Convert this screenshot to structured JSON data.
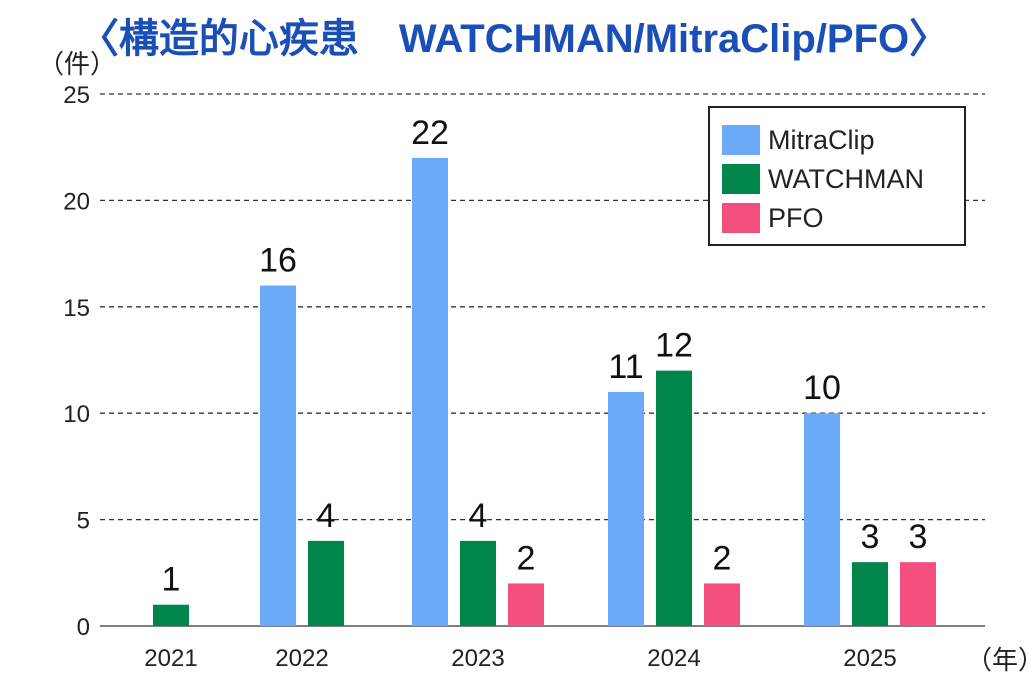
{
  "chart_data": {
    "type": "bar",
    "title": "〈構造的心疾患　WATCHMAN/MitraClip/PFO〉",
    "ylabel": "（件）",
    "xlabel": "（年）",
    "ylim": [
      0,
      25
    ],
    "yticks": [
      0,
      5,
      10,
      15,
      20,
      25
    ],
    "grid": true,
    "legend_position": "top-right",
    "categories": [
      "2021",
      "2022",
      "2023",
      "2024",
      "2025"
    ],
    "series": [
      {
        "name": "MitraClip",
        "color": "#6aaaf8",
        "values": [
          null,
          16,
          22,
          11,
          10
        ]
      },
      {
        "name": "WATCHMAN",
        "color": "#00854a",
        "values": [
          1,
          4,
          4,
          12,
          3
        ]
      },
      {
        "name": "PFO",
        "color": "#f54f7f",
        "values": [
          null,
          null,
          2,
          2,
          3
        ]
      }
    ]
  },
  "colors": {
    "title": "#1a4fb8",
    "axis": "#222222",
    "grid": "#333333"
  }
}
